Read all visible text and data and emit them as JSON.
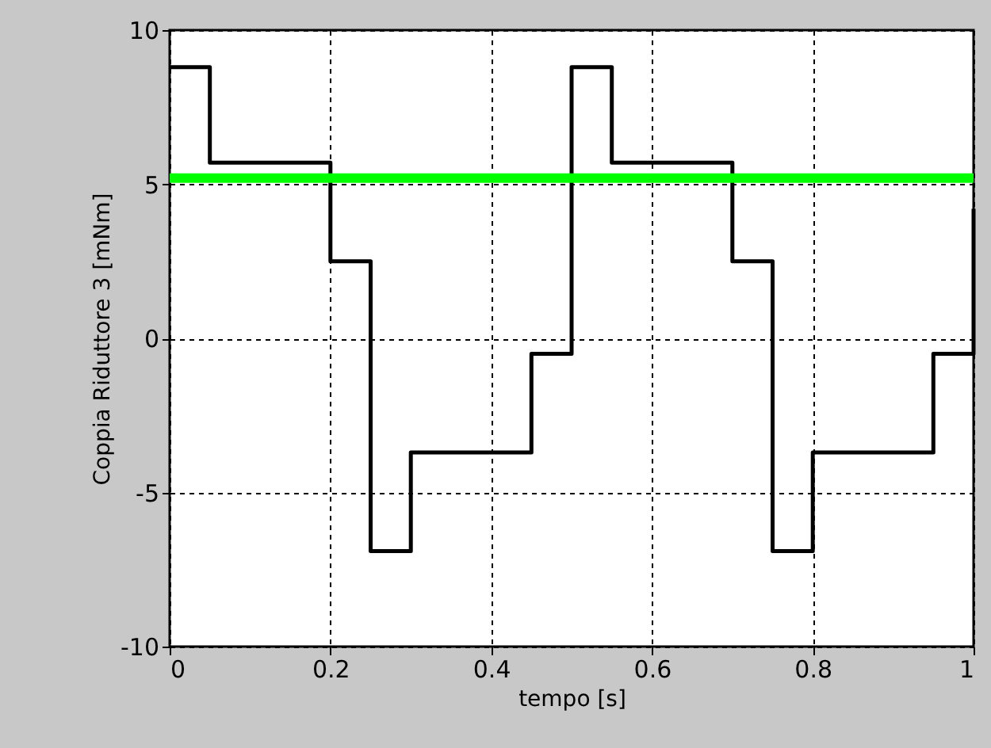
{
  "chart_data": {
    "type": "step",
    "xlabel": "tempo [s]",
    "ylabel": "Coppia Riduttore 3 [mNm]",
    "x": [
      0,
      0.05,
      0.2,
      0.25,
      0.3,
      0.45,
      0.5,
      0.55,
      0.7,
      0.75,
      0.8,
      0.95,
      1.0
    ],
    "series": [
      {
        "color": "#000000",
        "values": [
          8.8,
          5.7,
          2.5,
          -6.9,
          -3.7,
          -0.5,
          8.8,
          5.7,
          2.5,
          -6.9,
          -3.7,
          -0.5,
          4.2
        ]
      }
    ],
    "ref_lines": [
      {
        "axis": "y",
        "value": 5.2,
        "label": null,
        "color": "#00ff00"
      }
    ],
    "xlim": [
      0,
      1
    ],
    "xticks": [
      0,
      0.2,
      0.4,
      0.6,
      0.8,
      1
    ],
    "ylim": [
      -10,
      10
    ],
    "yticks": [
      -10,
      -5,
      0,
      5,
      10
    ],
    "grid": true,
    "line_style": "solid"
  }
}
